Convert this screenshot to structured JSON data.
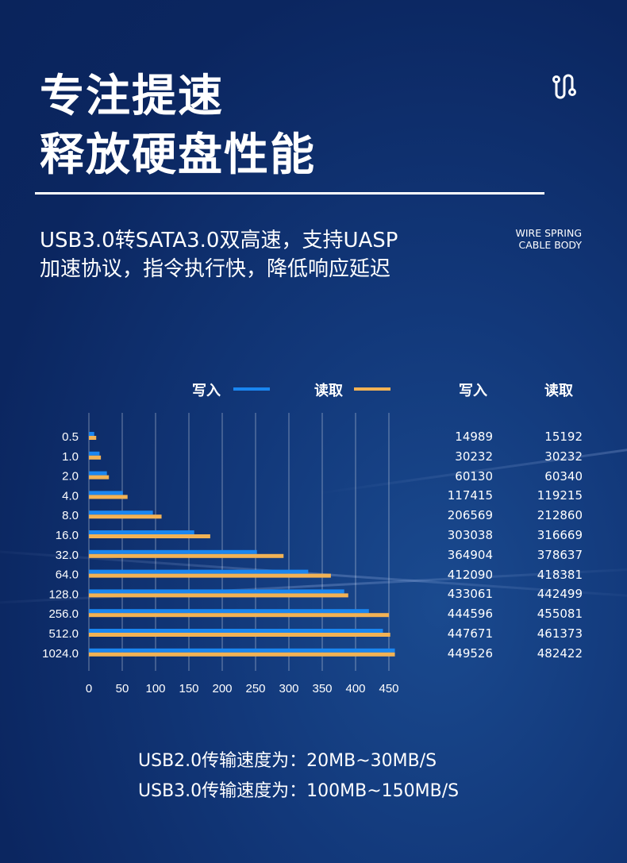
{
  "header": {
    "title_line1": "专注提速",
    "title_line2": "释放硬盘性能",
    "subtitle_line1": "USB3.0转SATA3.0双高速，支持UASP",
    "subtitle_line2": "加速协议，指令执行快，降低响应延迟",
    "tag_line1": "WIRE SPRING",
    "tag_line2": "CABLE BODY",
    "icon": "cable-icon"
  },
  "colors": {
    "write": "#1a86f0",
    "read": "#f2b254",
    "background": "#0b2660"
  },
  "chart_data": {
    "type": "bar",
    "orientation": "horizontal",
    "legend": [
      {
        "name": "写入",
        "color": "#1a86f0"
      },
      {
        "name": "读取",
        "color": "#f2b254"
      }
    ],
    "legend_placement": "top",
    "categories": [
      "0.5",
      "1.0",
      "2.0",
      "4.0",
      "8.0",
      "16.0",
      "32.0",
      "64.0",
      "128.0",
      "256.0",
      "512.0",
      "1024.0"
    ],
    "series": [
      {
        "name": "写入",
        "values": [
          8,
          16,
          27,
          51,
          96,
          158,
          252,
          329,
          383,
          420,
          441,
          459
        ]
      },
      {
        "name": "读取",
        "values": [
          11,
          18,
          30,
          58,
          109,
          182,
          292,
          363,
          389,
          450,
          452,
          459
        ]
      }
    ],
    "xlim": [
      0,
      460
    ],
    "xticks": [
      "0",
      "50",
      "100",
      "150",
      "200",
      "250",
      "300",
      "350",
      "400",
      "450"
    ],
    "grid": "vertical",
    "table": {
      "headers": [
        "写入",
        "读取"
      ],
      "rows": [
        [
          "14989",
          "15192"
        ],
        [
          "30232",
          "30232"
        ],
        [
          "60130",
          "60340"
        ],
        [
          "117415",
          "119215"
        ],
        [
          "206569",
          "212860"
        ],
        [
          "303038",
          "316669"
        ],
        [
          "364904",
          "378637"
        ],
        [
          "412090",
          "418381"
        ],
        [
          "433061",
          "442499"
        ],
        [
          "444596",
          "455081"
        ],
        [
          "447671",
          "461373"
        ],
        [
          "449526",
          "482422"
        ]
      ]
    }
  },
  "footer": {
    "line1": "USB2.0传输速度为：20MB~30MB/S",
    "line2": "USB3.0传输速度为：100MB~150MB/S"
  }
}
